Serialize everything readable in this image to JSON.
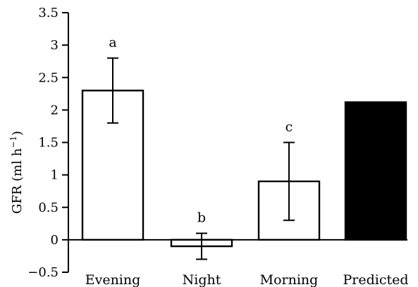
{
  "chart_data": {
    "type": "bar",
    "categories": [
      "Evening",
      "Night",
      "Morning",
      "Predicted"
    ],
    "values": [
      2.3,
      -0.1,
      0.9,
      2.12
    ],
    "errors": [
      0.5,
      0.2,
      0.6,
      null
    ],
    "significance_labels": [
      "a",
      "b",
      "c",
      ""
    ],
    "bar_colors": [
      "#ffffff",
      "#ffffff",
      "#ffffff",
      "#000000"
    ],
    "ylabel_main": "GFR (ml h",
    "ylabel_sup": "−1",
    "ylabel_close": ")",
    "ylim": [
      -0.5,
      3.5
    ],
    "yticks": [
      -0.5,
      0,
      0.5,
      1,
      1.5,
      2,
      2.5,
      3,
      3.5
    ],
    "ytick_labels": [
      "−0.5",
      "0",
      "0.5",
      "1",
      "1.5",
      "2",
      "2.5",
      "3",
      "3.5"
    ],
    "grid": false,
    "legend": "none"
  }
}
